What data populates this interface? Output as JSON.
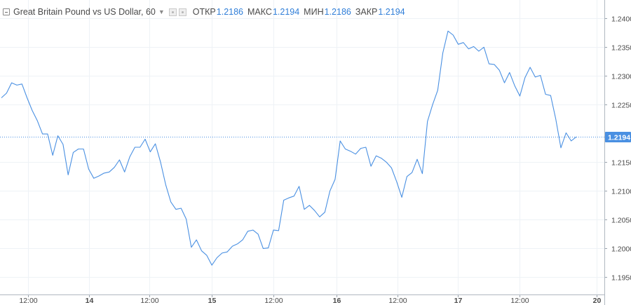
{
  "header": {
    "symbol_title": "Great Britain Pound vs US Dollar, 60",
    "open_label": "ОТКР",
    "open_value": "1.2186",
    "high_label": "МАКС",
    "high_value": "1.2194",
    "low_label": "МИН",
    "low_value": "1.2186",
    "close_label": "ЗАКР",
    "close_value": "1.2194"
  },
  "colors": {
    "line": "#4a90e2",
    "price_tag_bg": "#4a90e2",
    "grid": "#eef2f6",
    "axis_text": "#4a4a4a"
  },
  "chart_data": {
    "type": "line",
    "title": "",
    "xlabel": "",
    "ylabel": "",
    "x_tick_labels": [
      "12:00",
      "14",
      "12:00",
      "15",
      "12:00",
      "16",
      "12:00",
      "17",
      "12:00",
      "20"
    ],
    "y_tick_labels": [
      "1.2400",
      "1.2350",
      "1.2300",
      "1.2250",
      "1.2150",
      "1.2100",
      "1.2050",
      "1.2000",
      "1.1950"
    ],
    "y_ticks": [
      1.24,
      1.235,
      1.23,
      1.225,
      1.215,
      1.21,
      1.205,
      1.2,
      1.195
    ],
    "ylim": [
      1.192,
      1.2432
    ],
    "current_price": 1.2194,
    "current_price_label": "1.2194",
    "grid": true,
    "series": [
      {
        "values": [
          1.2262,
          1.227,
          1.2288,
          1.2284,
          1.2286,
          1.2262,
          1.224,
          1.2222,
          1.2199,
          1.2199,
          1.2162,
          1.2196,
          1.2181,
          1.2128,
          1.2167,
          1.2173,
          1.2173,
          1.2138,
          1.2122,
          1.2126,
          1.2131,
          1.2133,
          1.2141,
          1.2154,
          1.2133,
          1.2159,
          1.2176,
          1.2176,
          1.219,
          1.2168,
          1.2182,
          1.215,
          1.2111,
          1.2081,
          1.2068,
          1.207,
          1.2051,
          1.2002,
          1.2015,
          1.1996,
          1.1988,
          1.1971,
          1.1984,
          1.1992,
          1.1994,
          1.2004,
          1.2008,
          1.2015,
          1.203,
          1.2032,
          1.2025,
          1.2,
          1.2001,
          1.2032,
          1.2031,
          1.2084,
          1.2088,
          1.2091,
          1.2108,
          1.2068,
          1.2075,
          1.2066,
          1.2055,
          1.2063,
          1.21,
          1.212,
          1.2187,
          1.2173,
          1.2169,
          1.2164,
          1.2174,
          1.2176,
          1.2143,
          1.2161,
          1.2157,
          1.215,
          1.214,
          1.2116,
          1.2089,
          1.2125,
          1.2132,
          1.2155,
          1.213,
          1.2221,
          1.225,
          1.2275,
          1.234,
          1.2378,
          1.2371,
          1.2355,
          1.2358,
          1.2347,
          1.2351,
          1.2343,
          1.235,
          1.2321,
          1.232,
          1.231,
          1.2288,
          1.2306,
          1.2283,
          1.2265,
          1.2297,
          1.2315,
          1.2298,
          1.2301,
          1.2268,
          1.2266,
          1.2225,
          1.2175,
          1.2201,
          1.2187,
          1.2194
        ]
      }
    ]
  }
}
